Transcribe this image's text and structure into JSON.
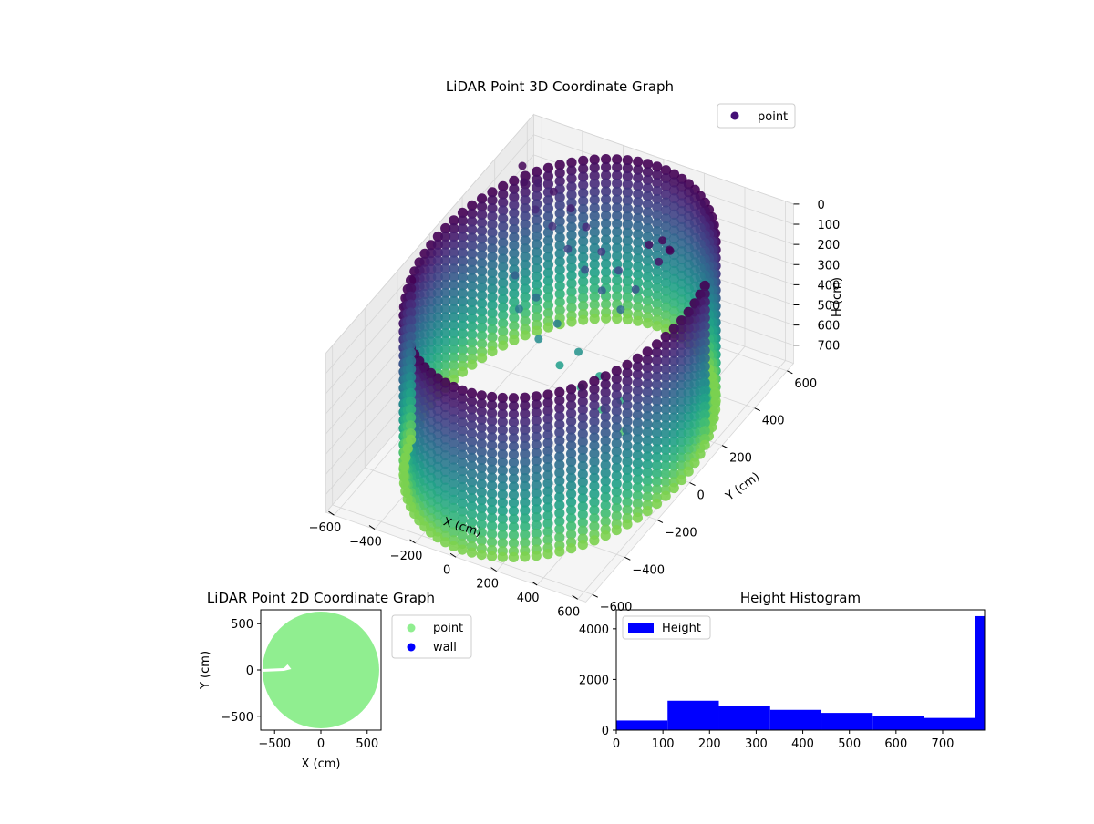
{
  "chart_data": [
    {
      "type": "scatter3d",
      "title": "LiDAR Point 3D Coordinate Graph",
      "xlabel": "X (cm)",
      "ylabel": "Y (cm)",
      "zlabel": "H (cm)",
      "x_ticks": [
        -600,
        -400,
        -200,
        0,
        200,
        400,
        600
      ],
      "y_ticks": [
        -600,
        -400,
        -200,
        0,
        200,
        400,
        600
      ],
      "z_ticks": [
        0,
        100,
        200,
        300,
        400,
        500,
        600,
        700
      ],
      "xlim": [
        -640,
        640
      ],
      "ylim": [
        -640,
        640
      ],
      "zlim": [
        0,
        790
      ],
      "z_inverted": true,
      "legend": {
        "entries": [
          "point"
        ],
        "position": "top-right"
      },
      "colormap": "viridis",
      "colors": {
        "point": "#440f76"
      },
      "wall_radius": 600,
      "wall_heights": [
        0,
        40,
        80,
        120,
        160,
        200,
        240,
        280,
        320,
        360,
        400,
        440,
        480,
        520,
        560,
        600,
        640,
        680,
        720,
        760,
        790
      ],
      "interior_points": [
        {
          "x": -520,
          "y": 420,
          "h": 10
        },
        {
          "x": -480,
          "y": 380,
          "h": 40
        },
        {
          "x": -450,
          "y": 430,
          "h": 80
        },
        {
          "x": -400,
          "y": 350,
          "h": 120
        },
        {
          "x": -350,
          "y": 400,
          "h": 60
        },
        {
          "x": -300,
          "y": 330,
          "h": 150
        },
        {
          "x": -250,
          "y": 380,
          "h": 90
        },
        {
          "x": -200,
          "y": 300,
          "h": 200
        },
        {
          "x": -150,
          "y": 350,
          "h": 120
        },
        {
          "x": -100,
          "y": 280,
          "h": 250
        },
        {
          "x": -50,
          "y": 320,
          "h": 180
        },
        {
          "x": 0,
          "y": 260,
          "h": 300
        },
        {
          "x": 50,
          "y": 300,
          "h": 220
        },
        {
          "x": 100,
          "y": 250,
          "h": 350
        },
        {
          "x": 150,
          "y": 280,
          "h": 260
        },
        {
          "x": 200,
          "y": 300,
          "h": 40
        },
        {
          "x": 250,
          "y": 320,
          "h": 20
        },
        {
          "x": 300,
          "y": 300,
          "h": 30
        },
        {
          "x": 320,
          "y": 280,
          "h": 10
        },
        {
          "x": 280,
          "y": 260,
          "h": 60
        },
        {
          "x": -380,
          "y": 200,
          "h": 300
        },
        {
          "x": -320,
          "y": 150,
          "h": 400
        },
        {
          "x": -260,
          "y": 180,
          "h": 350
        },
        {
          "x": -200,
          "y": 120,
          "h": 480
        },
        {
          "x": -140,
          "y": 160,
          "h": 420
        },
        {
          "x": -80,
          "y": 100,
          "h": 550
        },
        {
          "x": -20,
          "y": 140,
          "h": 500
        },
        {
          "x": 40,
          "y": 80,
          "h": 600
        },
        {
          "x": 100,
          "y": 120,
          "h": 560
        },
        {
          "x": 160,
          "y": 60,
          "h": 650
        },
        {
          "x": 220,
          "y": 100,
          "h": 620
        },
        {
          "x": 280,
          "y": 40,
          "h": 700
        }
      ]
    },
    {
      "type": "scatter",
      "title": "LiDAR Point 2D Coordinate Graph",
      "xlabel": "X (cm)",
      "ylabel": "Y (cm)",
      "x_ticks": [
        -500,
        0,
        500
      ],
      "y_ticks": [
        500,
        0,
        -500
      ],
      "xlim": [
        -650,
        650
      ],
      "ylim": [
        -650,
        650
      ],
      "point_radius": 600,
      "legend": {
        "entries": [
          "point",
          "wall"
        ],
        "position": "outside right"
      },
      "colors": {
        "point": "#90ee90",
        "wall": "#0000ff"
      },
      "gap": [
        [
          -640,
          10
        ],
        [
          -400,
          20
        ],
        [
          -360,
          60
        ],
        [
          -320,
          10
        ],
        [
          -400,
          -10
        ],
        [
          -640,
          -20
        ]
      ]
    },
    {
      "type": "bar",
      "title": "Height Histogram",
      "xlabel": "",
      "ylabel": "",
      "x_ticks": [
        0,
        100,
        200,
        300,
        400,
        500,
        600,
        700
      ],
      "y_ticks": [
        0,
        2000,
        4000
      ],
      "xlim": [
        0,
        790
      ],
      "ylim": [
        0,
        4750
      ],
      "bin_edges": [
        0,
        110,
        220,
        330,
        440,
        550,
        660,
        770,
        790
      ],
      "values": [
        380,
        1160,
        960,
        800,
        680,
        560,
        480,
        4500
      ],
      "legend": {
        "entries": [
          "Height"
        ],
        "position": "top-left"
      },
      "colors": {
        "Height": "#0000ff"
      }
    }
  ]
}
